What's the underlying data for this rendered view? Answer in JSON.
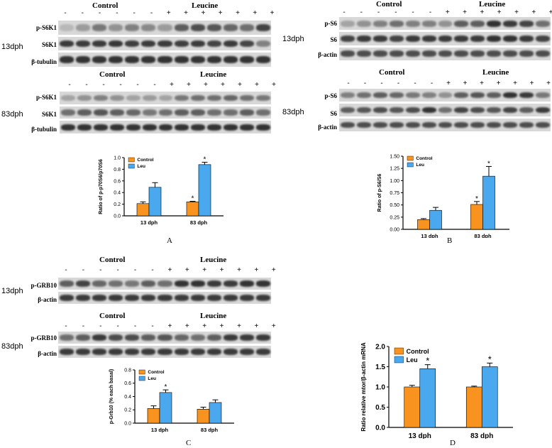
{
  "colors": {
    "control": "#f7931e",
    "leu": "#4aa8ee",
    "band": "#2b2b2b"
  },
  "labels": {
    "control": "Control",
    "leucine": "Leucine",
    "minus": "-",
    "plus": "+",
    "dph13": "13dph",
    "dph83": "83dph",
    "p_s6k1": "p-S6K1",
    "s6k1": "S6K1",
    "beta_tubulin": "β-tubulin",
    "p_s6": "p-S6",
    "s6": "S6",
    "beta_actin": "β-actin",
    "p_grb10": "p-GRB10",
    "panel_a": "A",
    "panel_b": "B",
    "panel_c": "C",
    "panel_d": "D"
  },
  "blots": {
    "A13": [
      [
        0.18,
        0.35,
        0.55,
        0.4,
        0.5,
        0.45,
        0.35,
        0.7,
        0.8,
        0.75,
        0.65,
        0.6,
        0.85
      ],
      [
        0.9,
        0.9,
        0.9,
        0.92,
        0.88,
        0.9,
        0.9,
        0.88,
        0.9,
        0.85,
        0.9,
        0.85,
        0.5
      ],
      [
        0.95,
        0.95,
        0.95,
        0.95,
        0.95,
        0.95,
        0.95,
        0.95,
        0.95,
        0.95,
        0.95,
        0.95,
        0.95
      ]
    ],
    "A83": [
      [
        0.3,
        0.4,
        0.5,
        0.4,
        0.3,
        0.35,
        0.3,
        0.55,
        0.6,
        0.6,
        0.65,
        0.6,
        0.55
      ],
      [
        0.6,
        0.7,
        0.75,
        0.7,
        0.65,
        0.55,
        0.6,
        0.7,
        0.7,
        0.6,
        0.6,
        0.7,
        0.6
      ],
      [
        0.95,
        0.95,
        0.95,
        0.95,
        0.95,
        0.95,
        0.95,
        0.95,
        0.95,
        0.95,
        0.95,
        0.95,
        0.95
      ]
    ],
    "B13": [
      [
        0.3,
        0.4,
        0.5,
        0.6,
        0.5,
        0.5,
        0.4,
        0.7,
        0.7,
        0.95,
        0.9,
        0.85,
        0.6
      ],
      [
        0.85,
        0.9,
        0.9,
        0.85,
        0.9,
        0.9,
        0.9,
        0.9,
        0.9,
        0.95,
        0.95,
        0.9,
        0.85
      ],
      [
        0.8,
        0.8,
        0.8,
        0.8,
        0.8,
        0.8,
        0.8,
        0.8,
        0.8,
        0.8,
        0.8,
        0.8,
        0.8
      ]
    ],
    "B83": [
      [
        0.5,
        0.6,
        0.7,
        0.65,
        0.55,
        0.5,
        0.4,
        0.7,
        0.75,
        0.7,
        0.95,
        0.9,
        0.55
      ],
      [
        0.7,
        0.75,
        0.8,
        0.75,
        0.8,
        0.95,
        0.6,
        0.85,
        0.8,
        0.75,
        0.85,
        0.7,
        0.9
      ],
      [
        0.8,
        0.8,
        0.8,
        0.8,
        0.8,
        0.8,
        0.8,
        0.8,
        0.8,
        0.8,
        0.8,
        0.8,
        0.8
      ]
    ],
    "C13": [
      [
        0.7,
        0.85,
        0.65,
        0.6,
        0.55,
        0.7,
        0.6,
        0.95,
        0.95,
        0.9,
        0.9,
        0.95,
        0.95
      ],
      [
        0.9,
        0.9,
        0.9,
        0.9,
        0.9,
        0.9,
        0.9,
        0.9,
        0.9,
        0.9,
        0.9,
        0.9,
        0.9
      ]
    ],
    "C83": [
      [
        0.6,
        0.7,
        0.9,
        0.8,
        0.8,
        0.7,
        0.75,
        0.65,
        0.6,
        0.7,
        0.9,
        0.9,
        0.9
      ],
      [
        0.9,
        0.9,
        0.9,
        0.9,
        0.9,
        0.9,
        0.9,
        0.9,
        0.9,
        0.9,
        0.9,
        0.9,
        0.9
      ]
    ]
  },
  "chart_data": [
    {
      "panel": "A",
      "type": "bar",
      "categories": [
        "13 dph",
        "83 dph"
      ],
      "series": [
        {
          "name": "Control",
          "values": [
            0.21,
            0.24
          ],
          "errors": [
            0.03,
            0.01
          ]
        },
        {
          "name": "Leu",
          "values": [
            0.49,
            0.88
          ],
          "errors": [
            0.08,
            0.04
          ]
        }
      ],
      "significance": [
        [
          false,
          true
        ],
        [
          false,
          true
        ]
      ],
      "xlabel": "",
      "ylabel": "Ratio of p-p70S6/p70S6",
      "ylim": [
        0,
        1.0
      ],
      "yticks": [
        "0.0",
        "0.2",
        "0.4",
        "0.6",
        "0.8",
        "1.0"
      ],
      "legend": "top-left"
    },
    {
      "panel": "B",
      "type": "bar",
      "categories": [
        "13 dph",
        "83 dph"
      ],
      "series": [
        {
          "name": "Control",
          "values": [
            0.2,
            0.51
          ],
          "errors": [
            0.02,
            0.06
          ]
        },
        {
          "name": "Leu",
          "values": [
            0.39,
            1.09
          ],
          "errors": [
            0.06,
            0.2
          ]
        }
      ],
      "significance": [
        [
          false,
          true
        ],
        [
          false,
          true
        ]
      ],
      "xlabel": "",
      "ylabel": "Ratio of p-S6/S6",
      "ylim": [
        0,
        1.5
      ],
      "yticks": [
        "0.00",
        "0.50",
        "1.00",
        "1.50"
      ],
      "yticks_minor_labels": [
        "0.25",
        "0.75",
        "1.25"
      ],
      "legend": "top-left"
    },
    {
      "panel": "C",
      "type": "bar",
      "categories": [
        "13 dph",
        "83 dph"
      ],
      "series": [
        {
          "name": "Control",
          "values": [
            0.22,
            0.21
          ],
          "errors": [
            0.04,
            0.03
          ]
        },
        {
          "name": "Leu",
          "values": [
            0.46,
            0.31
          ],
          "errors": [
            0.04,
            0.04
          ]
        }
      ],
      "significance": [
        [
          false,
          false
        ],
        [
          true,
          false
        ]
      ],
      "xlabel": "",
      "ylabel": "p-Grb10 (% each basal)",
      "ylim": [
        0,
        0.8
      ],
      "yticks": [
        "0.0",
        "0.2",
        "0.4",
        "0.6",
        "0.8"
      ],
      "legend": "top-left"
    },
    {
      "panel": "D",
      "type": "bar",
      "categories": [
        "13 dph",
        "83 dph"
      ],
      "series": [
        {
          "name": "Control",
          "values": [
            1.0,
            1.0
          ],
          "errors": [
            0.04,
            0.02
          ]
        },
        {
          "name": "Leu",
          "values": [
            1.45,
            1.5
          ],
          "errors": [
            0.1,
            0.09
          ]
        }
      ],
      "significance": [
        [
          false,
          false
        ],
        [
          true,
          true
        ]
      ],
      "xlabel": "",
      "ylabel": "Ratio relative mtor/β-actin mRNA",
      "ylim": [
        0,
        2.0
      ],
      "yticks": [
        "0.0",
        "0.5",
        "1.0",
        "1.5",
        "2.0"
      ],
      "legend": "top-left"
    }
  ]
}
